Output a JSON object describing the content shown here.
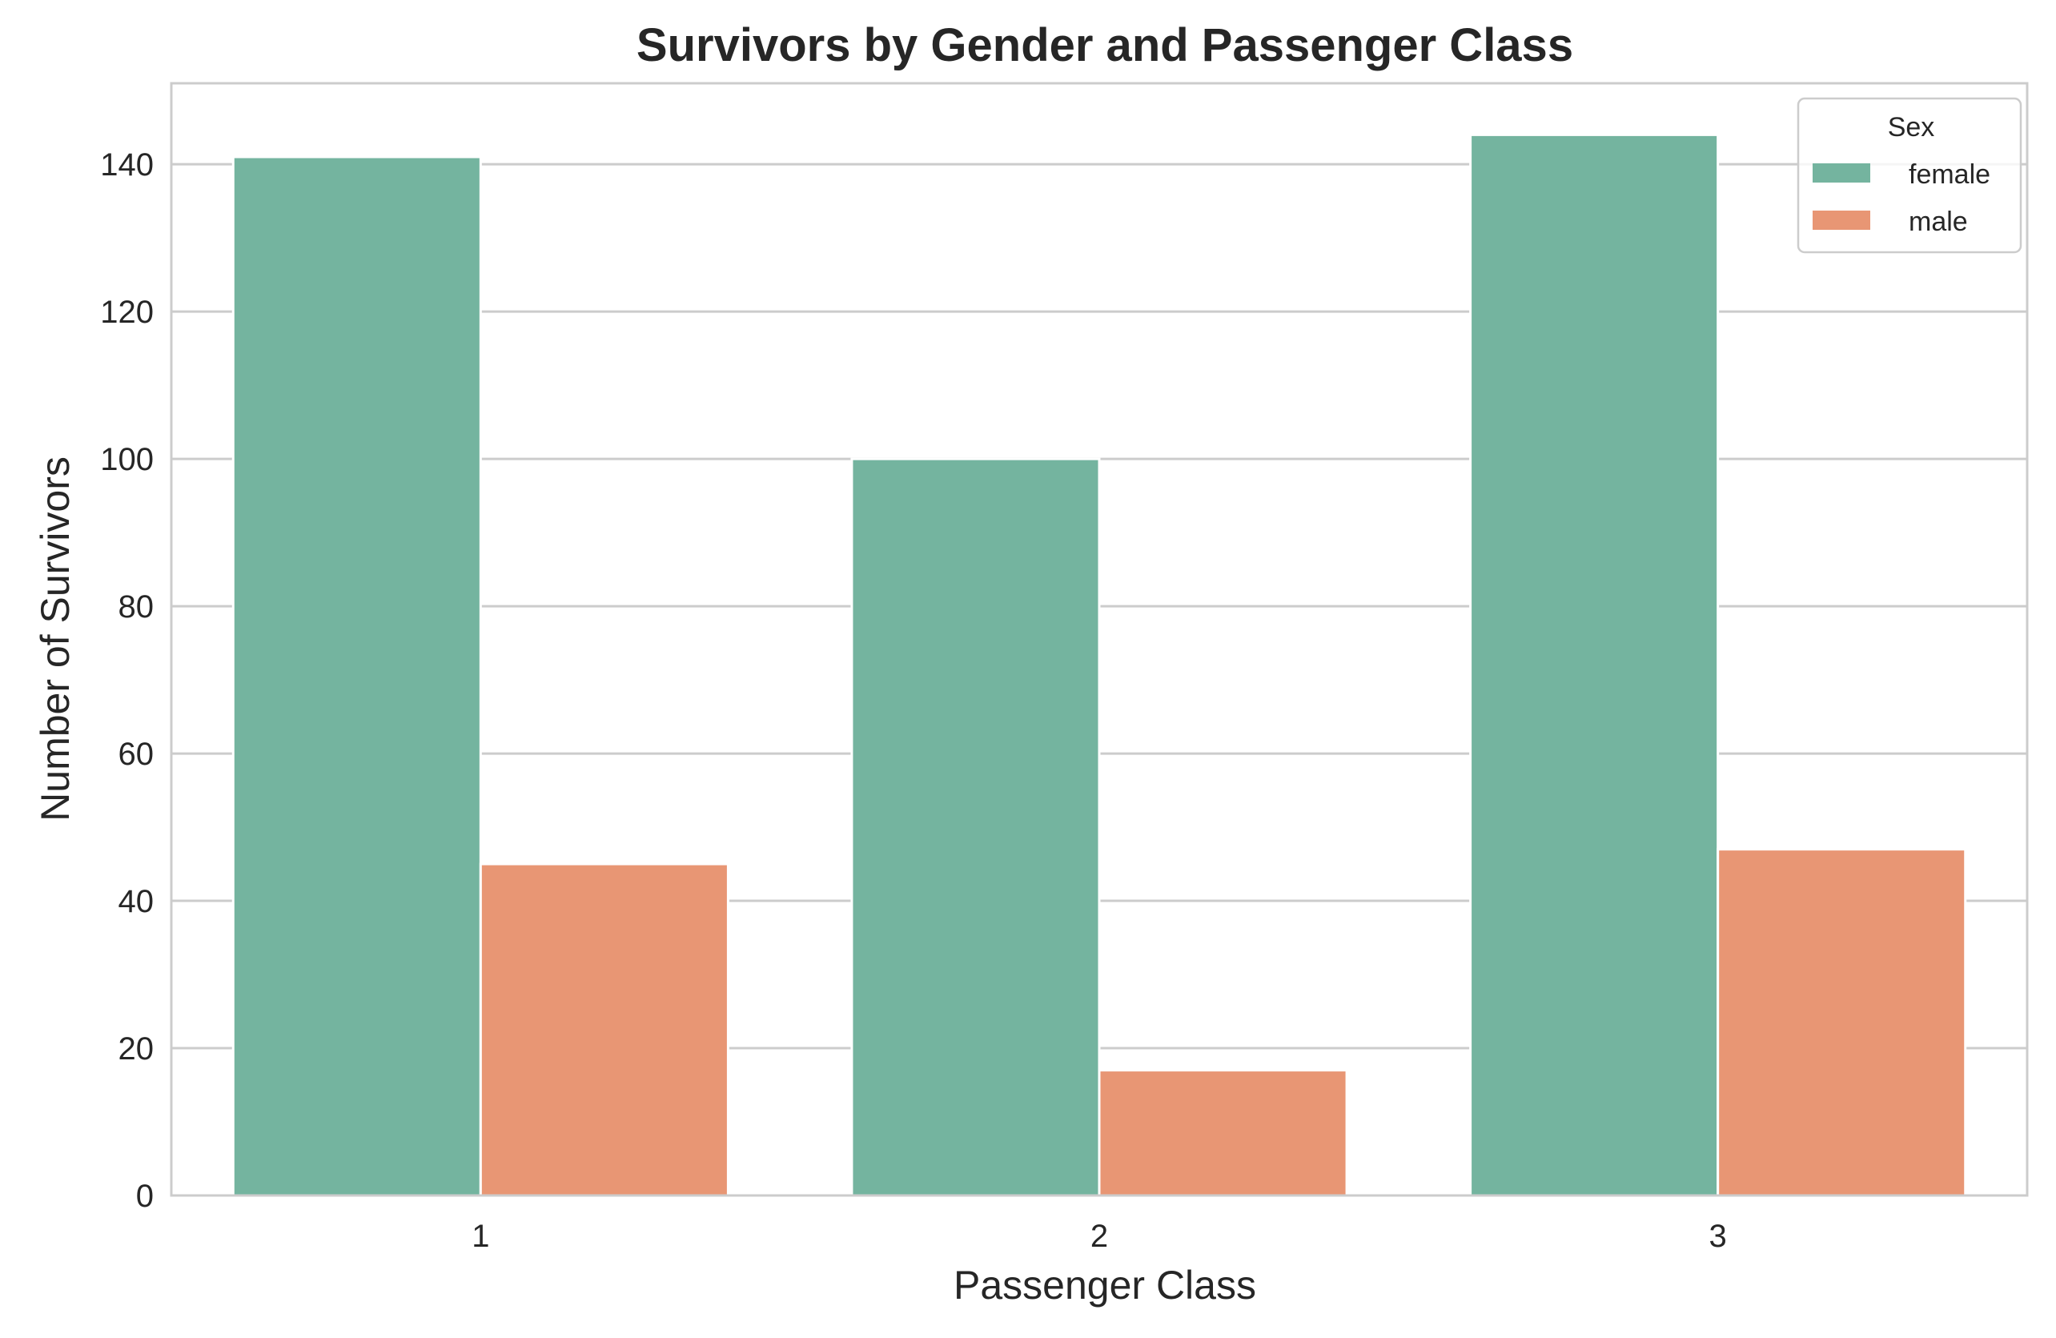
{
  "chart_data": {
    "type": "bar",
    "title": "Survivors by Gender and Passenger Class",
    "xlabel": "Passenger Class",
    "ylabel": "Number of Survivors",
    "categories": [
      "1",
      "2",
      "3"
    ],
    "series": [
      {
        "name": "female",
        "values": [
          141,
          100,
          144
        ],
        "color": "#74b49f"
      },
      {
        "name": "male",
        "values": [
          45,
          17,
          47
        ],
        "color": "#e89674"
      }
    ],
    "ylim": [
      0,
      151
    ],
    "yticks": [
      0,
      20,
      40,
      60,
      80,
      100,
      120,
      140
    ],
    "grid": "horizontal",
    "legend": {
      "title": "Sex",
      "placement": "top-right"
    }
  }
}
